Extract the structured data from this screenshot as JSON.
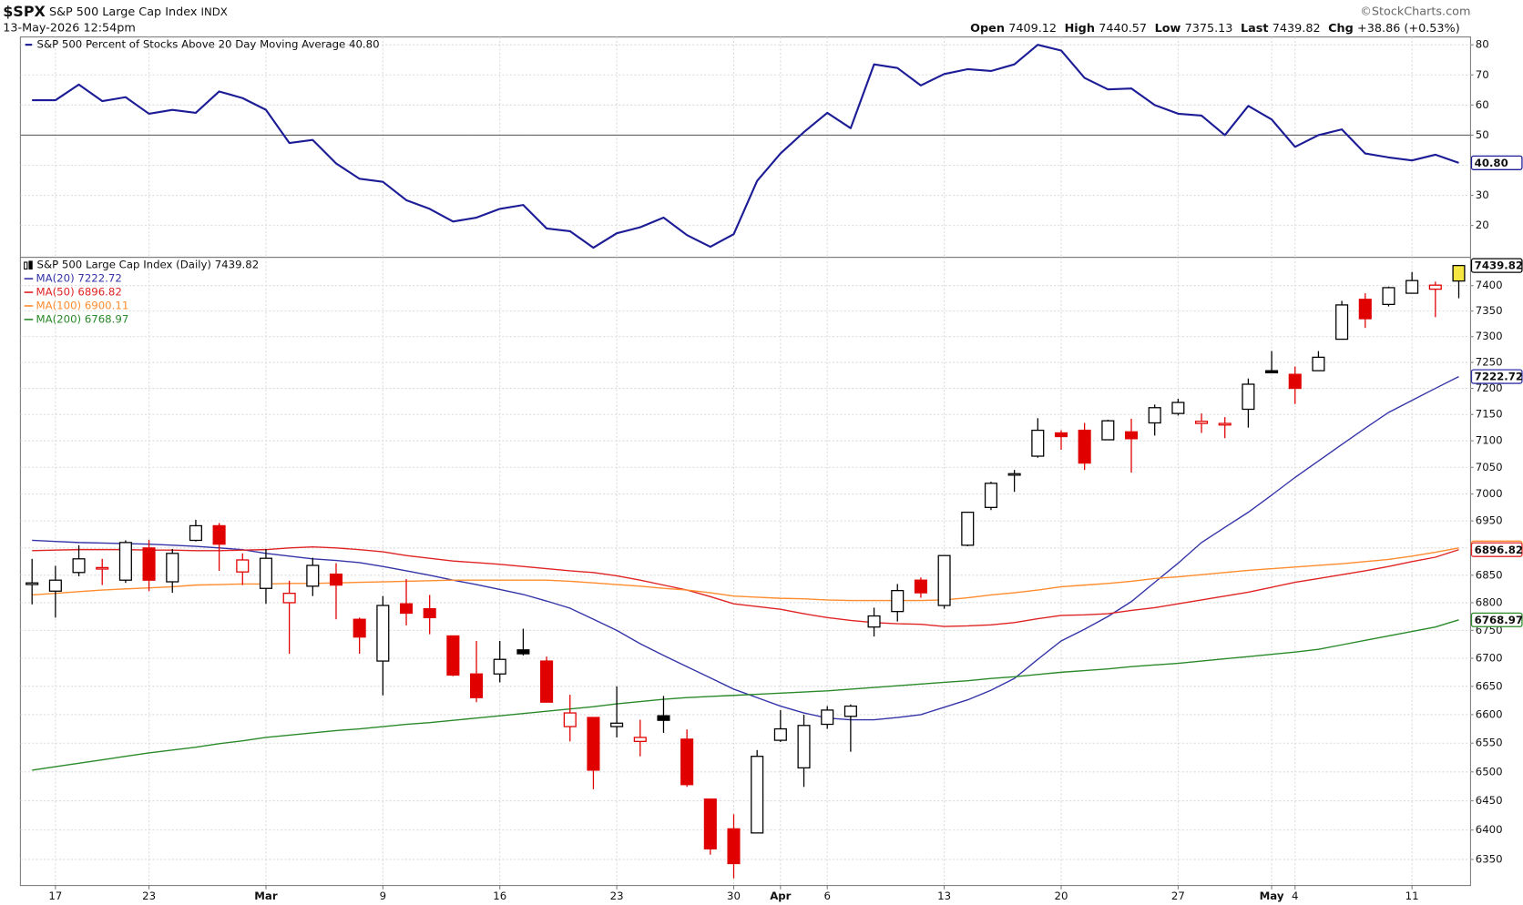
{
  "header": {
    "symbol": "$SPX",
    "name": "S&P 500 Large Cap Index",
    "exchange": "INDX",
    "timestamp": "13-May-2026 12:54pm",
    "credit": "©StockCharts.com",
    "quote": [
      {
        "label": "Open",
        "value": "7409.12"
      },
      {
        "label": "High",
        "value": "7440.57"
      },
      {
        "label": "Low",
        "value": "7375.13"
      },
      {
        "label": "Last",
        "value": "7439.82"
      },
      {
        "label": "Chg",
        "value": "+38.86 (+0.53%)"
      }
    ]
  },
  "chart_data": [
    {
      "type": "line",
      "log_scale": false,
      "grid": true,
      "ylim": [
        9.4,
        82.6
      ],
      "yticks": [
        20,
        30,
        40,
        50,
        60,
        70,
        80
      ],
      "reference_line": 50,
      "series": [
        {
          "name": "S&P 500 Percent of Stocks Above 20 Day Moving Average 40.80",
          "color": "#1c1c96",
          "values": [
            61.6,
            61.6,
            66.8,
            61.3,
            62.6,
            57.1,
            58.4,
            57.4,
            64.5,
            62.3,
            58.4,
            47.4,
            48.4,
            40.6,
            35.5,
            34.5,
            28.4,
            25.5,
            21.3,
            22.6,
            25.5,
            26.8,
            19.0,
            18.1,
            12.6,
            17.4,
            19.4,
            22.6,
            16.8,
            12.9,
            17.1,
            34.8,
            43.9,
            51.0,
            57.4,
            52.3,
            73.5,
            72.3,
            66.5,
            70.3,
            71.9,
            71.3,
            73.5,
            80.0,
            78.1,
            69.0,
            65.2,
            65.5,
            60.0,
            57.1,
            56.5,
            50.0,
            59.7,
            55.2,
            46.1,
            50.0,
            51.9,
            43.9,
            42.6,
            41.6,
            43.5,
            40.8
          ],
          "value_labels": [
            null,
            null,
            null,
            null,
            null,
            null,
            null,
            null,
            null,
            null,
            null,
            null,
            null,
            null,
            null,
            null,
            null,
            null,
            null,
            null,
            null,
            null,
            null,
            null,
            null,
            null,
            null,
            null,
            null,
            null,
            null,
            null,
            null,
            null,
            null,
            null,
            null,
            null,
            null,
            null,
            null,
            null,
            null,
            null,
            null,
            null,
            null,
            null,
            null,
            null,
            null,
            null,
            null,
            null,
            null,
            null,
            null,
            null,
            null,
            null,
            null,
            "40.80"
          ]
        }
      ]
    },
    {
      "type": "candlestick",
      "name": "S&P 500 Large Cap Index (Daily) 7439.82",
      "log_scale": true,
      "grid": true,
      "up_color": "#000000",
      "down_color": "#e00000",
      "highlight_color": "#f5e642",
      "ylim": [
        6306,
        7456
      ],
      "yticks": [
        6350,
        6400,
        6450,
        6500,
        6550,
        6600,
        6650,
        6700,
        6750,
        6800,
        6850,
        6900,
        6950,
        7000,
        7050,
        7100,
        7150,
        7200,
        7250,
        7300,
        7350,
        7400
      ],
      "categories": [
        null,
        "17",
        null,
        null,
        null,
        "23",
        null,
        null,
        null,
        null,
        "Mar",
        null,
        null,
        null,
        null,
        "9",
        null,
        null,
        null,
        null,
        "16",
        null,
        null,
        null,
        null,
        "23",
        null,
        null,
        null,
        null,
        "30",
        null,
        "Apr",
        null,
        "6",
        null,
        null,
        null,
        null,
        "13",
        null,
        null,
        null,
        null,
        "20",
        null,
        null,
        null,
        null,
        "27",
        null,
        null,
        null,
        "May",
        "4",
        null,
        null,
        null,
        null,
        "11",
        null,
        null
      ],
      "open": [
        6833,
        6821,
        6855,
        6862,
        6841,
        6900,
        6838,
        6914,
        6941,
        6856,
        6826,
        6800,
        6830,
        6852,
        6770,
        6695,
        6798,
        6789,
        6740,
        6672,
        6672,
        6715,
        6695,
        6579,
        6595,
        6579,
        6553,
        6598,
        6557,
        6453,
        6402,
        6395,
        6555,
        6507,
        6583,
        6597,
        6756,
        6784,
        6841,
        6795,
        6905,
        6975,
        7036,
        7071,
        7115,
        7120,
        7102,
        7117,
        7134,
        7152,
        7133,
        7130,
        7160,
        7234,
        7227,
        7234,
        7295,
        7373,
        7363,
        7385,
        7393,
        7409.12
      ],
      "high": [
        6880,
        6867,
        6905,
        6880,
        6914,
        6915,
        6898,
        6952,
        6946,
        6890,
        6898,
        6840,
        6882,
        6872,
        6773,
        6812,
        6843,
        6814,
        6740,
        6731,
        6731,
        6753,
        6703,
        6635,
        6595,
        6650,
        6591,
        6633,
        6574,
        6453,
        6427,
        6538,
        6608,
        6600,
        6615,
        6618,
        6791,
        6834,
        6846,
        6886,
        6967,
        7023,
        7045,
        7143,
        7120,
        7134,
        7140,
        7142,
        7169,
        7180,
        7152,
        7145,
        7219,
        7272,
        7242,
        7272,
        7370,
        7385,
        7398,
        7427,
        7408,
        7440.57
      ],
      "low": [
        6797,
        6773,
        6848,
        6832,
        6836,
        6821,
        6818,
        6912,
        6858,
        6832,
        6798,
        6708,
        6812,
        6770,
        6708,
        6634,
        6759,
        6743,
        6668,
        6622,
        6657,
        6705,
        6622,
        6553,
        6470,
        6560,
        6527,
        6568,
        6474,
        6358,
        6318,
        6395,
        6552,
        6474,
        6575,
        6535,
        6739,
        6766,
        6809,
        6789,
        6903,
        6970,
        7004,
        7068,
        7083,
        7045,
        7102,
        7040,
        7110,
        7148,
        7115,
        7105,
        7125,
        7230,
        7170,
        7234,
        7295,
        7317,
        7359,
        7385,
        7338,
        7375.13
      ],
      "close": [
        6836,
        6841,
        6880,
        6864,
        6910,
        6841,
        6890,
        6941,
        6907,
        6878,
        6881,
        6817,
        6868,
        6832,
        6738,
        6795,
        6781,
        6773,
        6670,
        6630,
        6698,
        6708,
        6622,
        6603,
        6503,
        6585,
        6560,
        6590,
        6478,
        6368,
        6343,
        6527,
        6575,
        6581,
        6608,
        6615,
        6776,
        6822,
        6818,
        6886,
        6966,
        7020,
        7038,
        7120,
        7108,
        7058,
        7138,
        7104,
        7163,
        7173,
        7137,
        7133,
        7208,
        7230,
        7200,
        7260,
        7362,
        7335,
        7396,
        7410,
        7400.96,
        7439.82
      ],
      "series": [
        {
          "name": "MA(20) 7222.72",
          "color": "#3434a8",
          "values": [
            6914,
            6912,
            6910,
            6909,
            6908,
            6907,
            6905,
            6903,
            6900,
            6897,
            6890,
            6885,
            6880,
            6877,
            6873,
            6866,
            6858,
            6850,
            6841,
            6833,
            6824,
            6815,
            6803,
            6790,
            6770,
            6750,
            6726,
            6705,
            6685,
            6665,
            6645,
            6630,
            6615,
            6603,
            6594,
            6591,
            6591,
            6595,
            6600,
            6613,
            6626,
            6643,
            6664,
            6698,
            6731,
            6752,
            6775,
            6802,
            6837,
            6872,
            6910,
            6938,
            6966,
            6998,
            7031,
            7062,
            7093,
            7124,
            7154,
            7177,
            7200,
            7222.72
          ]
        },
        {
          "name": "MA(50) 6896.82",
          "color": "#e02424",
          "values": [
            6895,
            6896,
            6897,
            6897,
            6897,
            6896,
            6896,
            6895,
            6895,
            6896,
            6897,
            6900,
            6902,
            6900,
            6897,
            6893,
            6886,
            6881,
            6876,
            6873,
            6870,
            6866,
            6862,
            6858,
            6855,
            6849,
            6841,
            6832,
            6823,
            6811,
            6798,
            6793,
            6788,
            6780,
            6773,
            6768,
            6764,
            6762,
            6761,
            6757,
            6758,
            6760,
            6764,
            6771,
            6777,
            6778,
            6780,
            6786,
            6791,
            6798,
            6805,
            6812,
            6819,
            6828,
            6837,
            6844,
            6851,
            6858,
            6866,
            6875,
            6883,
            6896.82
          ]
        },
        {
          "name": "MA(100) 6900.11",
          "color": "#ff8c2e",
          "values": [
            6814,
            6817,
            6820,
            6823,
            6825,
            6827,
            6829,
            6832,
            6833,
            6834,
            6834,
            6835,
            6835,
            6836,
            6837,
            6838,
            6839,
            6840,
            6841,
            6841,
            6841,
            6841,
            6841,
            6839,
            6836,
            6833,
            6830,
            6826,
            6823,
            6818,
            6812,
            6810,
            6808,
            6807,
            6805,
            6804,
            6804,
            6804,
            6804,
            6805,
            6809,
            6814,
            6818,
            6823,
            6829,
            6832,
            6835,
            6839,
            6844,
            6847,
            6851,
            6855,
            6859,
            6862,
            6865,
            6868,
            6871,
            6875,
            6879,
            6885,
            6892,
            6900.11
          ]
        },
        {
          "name": "MA(200) 6768.97",
          "color": "#2a8a2a",
          "values": [
            6503,
            6509,
            6515,
            6521,
            6527,
            6533,
            6538,
            6543,
            6549,
            6554,
            6560,
            6564,
            6568,
            6572,
            6575,
            6579,
            6583,
            6586,
            6590,
            6594,
            6598,
            6602,
            6606,
            6610,
            6614,
            6619,
            6623,
            6627,
            6630,
            6632,
            6634,
            6636,
            6638,
            6640,
            6642,
            6645,
            6648,
            6651,
            6654,
            6657,
            6660,
            6664,
            6667,
            6671,
            6675,
            6678,
            6681,
            6685,
            6688,
            6691,
            6695,
            6699,
            6703,
            6707,
            6711,
            6716,
            6724,
            6732,
            6740,
            6748,
            6756,
            6768.97
          ]
        }
      ]
    }
  ]
}
